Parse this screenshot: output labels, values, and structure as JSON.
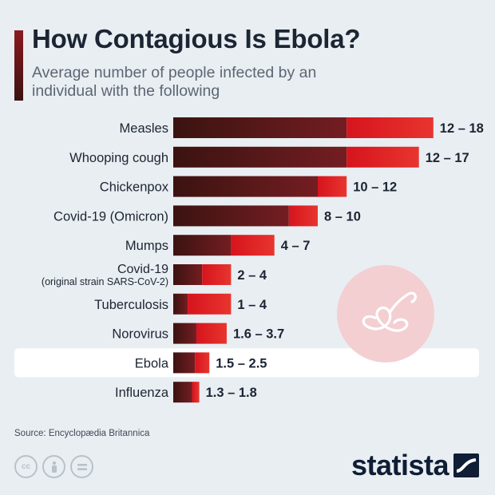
{
  "title": "How Contagious Is Ebola?",
  "subtitle": "Average number of people infected by an individual with the following",
  "source": "Source: Encyclopædia Britannica",
  "brand": "statista",
  "colors": {
    "bar_dark_start": "#3a1310",
    "bar_dark_end": "#741d22",
    "bar_red_start": "#d6141d",
    "bar_red_end": "#e8352f",
    "highlight_row": "#ffffff",
    "text": "#1c2533",
    "virus_circle": "#f3cfd2"
  },
  "icons": {
    "license": [
      "cc-icon",
      "attribution-icon",
      "no-derivatives-icon"
    ],
    "decoration": "virus-icon",
    "brand": "statista-logo-icon"
  },
  "chart_data": {
    "type": "bar",
    "orientation": "horizontal",
    "stacked_range": true,
    "highlight": "Ebola",
    "categories": [
      "Measles",
      "Whooping cough",
      "Chickenpox",
      "Covid-19 (Omicron)",
      "Mumps",
      "Covid-19\n(original strain SARS-CoV-2)",
      "Tuberculosis",
      "Norovirus",
      "Ebola",
      "Influenza"
    ],
    "low": [
      12,
      12,
      10,
      8,
      4,
      2,
      1,
      1.6,
      1.5,
      1.3
    ],
    "high": [
      18,
      17,
      12,
      10,
      7,
      4,
      4,
      3.7,
      2.5,
      1.8
    ],
    "labels": [
      "12 – 18",
      "12 – 17",
      "10 – 12",
      "8 – 10",
      "4 – 7",
      "2 – 4",
      "1 – 4",
      "1.6 – 3.7",
      "1.5 – 2.5",
      "1.3 – 1.8"
    ],
    "xlim": [
      0,
      18
    ],
    "grid": false,
    "legend": "none"
  }
}
